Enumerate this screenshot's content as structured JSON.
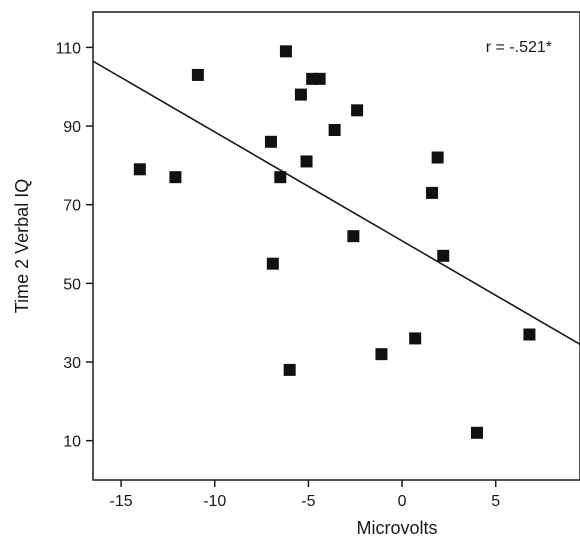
{
  "chart_data": {
    "type": "scatter",
    "title": "",
    "xlabel": "Microvolts",
    "ylabel": "Time 2 Verbal IQ",
    "xlim": [
      -16.5,
      9.5
    ],
    "ylim": [
      0,
      119
    ],
    "x_ticks": [
      -15,
      -10,
      -5,
      0,
      5
    ],
    "x_tick_labels": [
      "-15",
      "-10",
      "-5",
      "0",
      "5"
    ],
    "y_ticks": [
      10,
      30,
      50,
      70,
      90,
      110
    ],
    "y_tick_labels": [
      "10",
      "30",
      "50",
      "70",
      "90",
      "110"
    ],
    "grid": false,
    "marker": "square",
    "marker_color": "#111111",
    "annotation": "r = -.521*",
    "points": [
      {
        "x": -14.0,
        "y": 79
      },
      {
        "x": -12.1,
        "y": 77
      },
      {
        "x": -10.9,
        "y": 103
      },
      {
        "x": -7.0,
        "y": 86
      },
      {
        "x": -6.9,
        "y": 55
      },
      {
        "x": -6.5,
        "y": 77
      },
      {
        "x": -6.2,
        "y": 109
      },
      {
        "x": -6.0,
        "y": 28
      },
      {
        "x": -5.4,
        "y": 98
      },
      {
        "x": -5.1,
        "y": 81
      },
      {
        "x": -4.8,
        "y": 102
      },
      {
        "x": -4.4,
        "y": 102
      },
      {
        "x": -3.6,
        "y": 89
      },
      {
        "x": -2.6,
        "y": 62
      },
      {
        "x": -2.4,
        "y": 94
      },
      {
        "x": -1.1,
        "y": 32
      },
      {
        "x": 0.7,
        "y": 36
      },
      {
        "x": 1.6,
        "y": 73
      },
      {
        "x": 1.9,
        "y": 82
      },
      {
        "x": 2.2,
        "y": 57
      },
      {
        "x": 4.0,
        "y": 12
      },
      {
        "x": 6.8,
        "y": 37
      }
    ],
    "trendline": {
      "x": [
        -16.5,
        9.5
      ],
      "y": [
        106.5,
        34.5
      ]
    }
  }
}
